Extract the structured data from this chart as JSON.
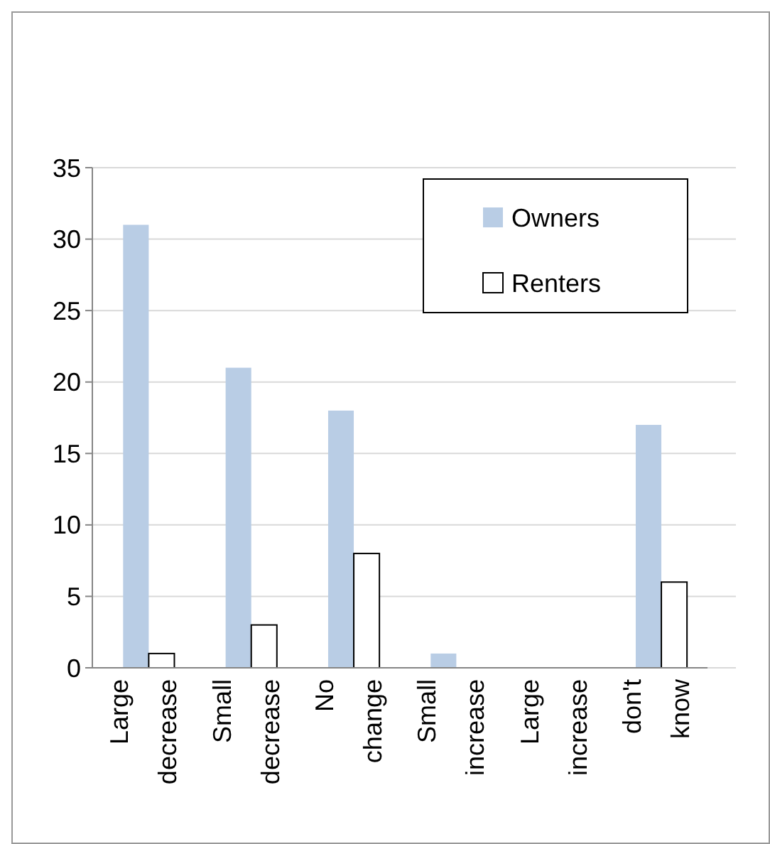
{
  "chart_data": {
    "type": "bar",
    "categories": [
      "Large decrease",
      "Small decrease",
      "No change",
      "Small increase",
      "Large increase",
      "don't know"
    ],
    "series": [
      {
        "name": "Owners",
        "color": "#b9cde5",
        "values": [
          31,
          21,
          18,
          1,
          0,
          17
        ]
      },
      {
        "name": "Renters",
        "color": "#ffffff",
        "values": [
          1,
          3,
          8,
          0,
          0,
          6
        ]
      }
    ],
    "ylim": [
      0,
      35
    ],
    "yticks": [
      0,
      5,
      10,
      15,
      20,
      25,
      30,
      35
    ],
    "grid": "y",
    "legend": "top right"
  }
}
